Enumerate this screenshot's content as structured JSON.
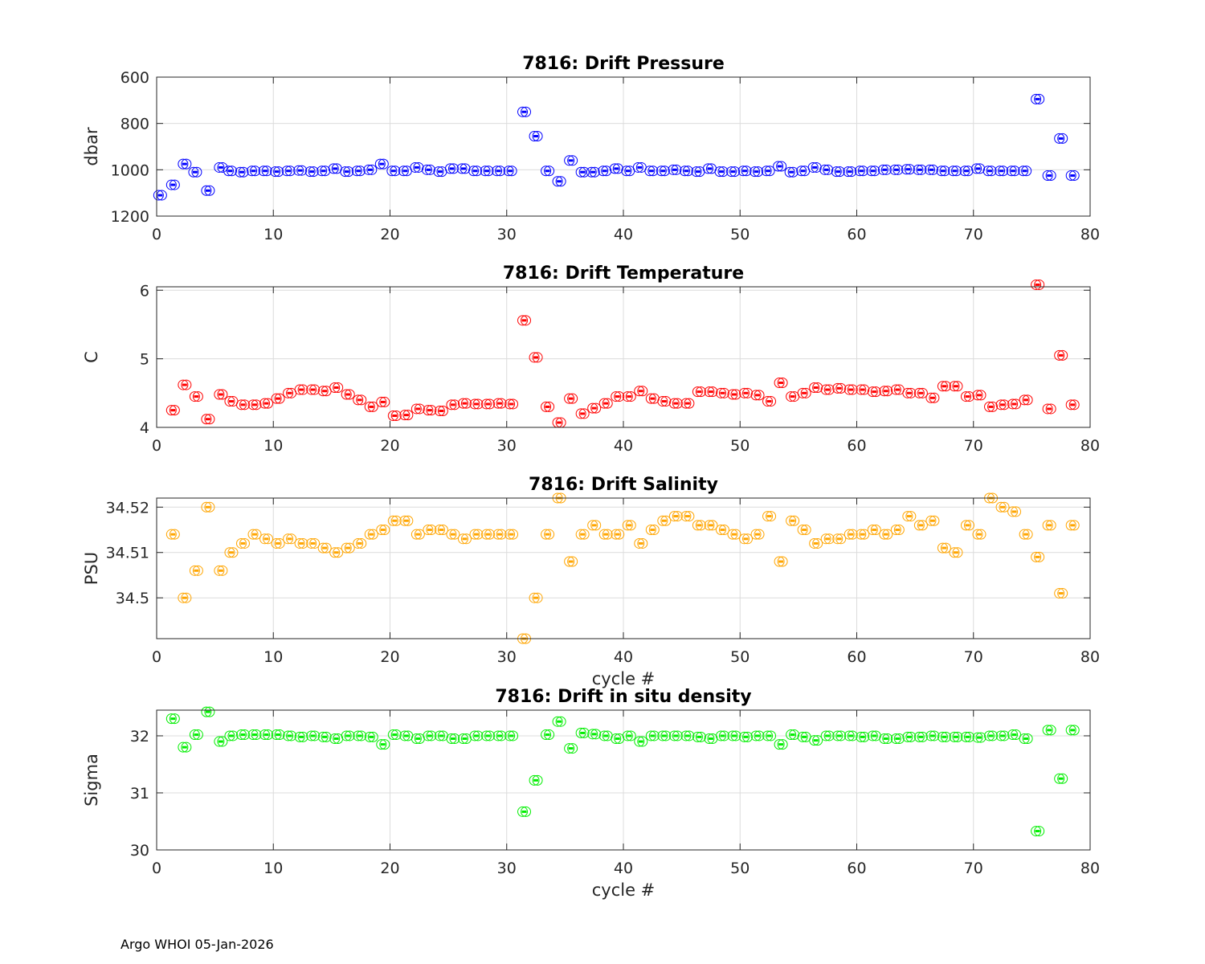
{
  "chart_data": [
    {
      "type": "scatter",
      "title": "7816: Drift Pressure",
      "xlabel": "",
      "ylabel": "dbar",
      "xlim": [
        0,
        80
      ],
      "ylim": [
        600,
        1200
      ],
      "y_reversed": true,
      "xticks": [
        0,
        10,
        20,
        30,
        40,
        50,
        60,
        70,
        80
      ],
      "xtick_labels": [
        "0",
        "10",
        "20",
        "30",
        "40",
        "50",
        "60",
        "70",
        "80"
      ],
      "yticks": [
        600,
        800,
        1000,
        1200
      ],
      "ytick_labels": [
        "600",
        "800",
        "1000",
        "1200"
      ],
      "color": "#0000ff",
      "series": [
        {
          "name": "drift pressure",
          "x": [
            0.3,
            1.4,
            2.4,
            3.3,
            4.4,
            5.5,
            6.3,
            7.3,
            8.3,
            9.3,
            10.3,
            11.3,
            12.3,
            13.3,
            14.3,
            15.3,
            16.3,
            17.3,
            18.3,
            19.3,
            20.3,
            21.3,
            22.3,
            23.3,
            24.3,
            25.3,
            26.3,
            27.3,
            28.3,
            29.3,
            30.3,
            31.5,
            32.5,
            33.5,
            34.5,
            35.5,
            36.5,
            37.4,
            38.4,
            39.4,
            40.4,
            41.4,
            42.4,
            43.4,
            44.4,
            45.4,
            46.4,
            47.4,
            48.4,
            49.4,
            50.4,
            51.4,
            52.4,
            53.4,
            54.4,
            55.4,
            56.4,
            57.4,
            58.4,
            59.4,
            60.4,
            61.4,
            62.4,
            63.4,
            64.4,
            65.4,
            66.4,
            67.4,
            68.4,
            69.4,
            70.4,
            71.4,
            72.4,
            73.4,
            74.4,
            75.5,
            76.5,
            77.5,
            78.5
          ],
          "y": [
            1110,
            1065,
            975,
            1010,
            1090,
            990,
            1005,
            1010,
            1005,
            1005,
            1008,
            1005,
            1003,
            1008,
            1005,
            995,
            1008,
            1005,
            1000,
            975,
            1005,
            1005,
            990,
            1000,
            1008,
            995,
            995,
            1005,
            1005,
            1005,
            1005,
            750,
            855,
            1005,
            1050,
            960,
            1010,
            1010,
            1005,
            995,
            1005,
            990,
            1005,
            1005,
            1000,
            1005,
            1008,
            995,
            1008,
            1008,
            1005,
            1008,
            1005,
            985,
            1010,
            1005,
            990,
            1000,
            1008,
            1008,
            1005,
            1005,
            1000,
            1000,
            998,
            1000,
            1000,
            1005,
            1005,
            1005,
            995,
            1005,
            1005,
            1005,
            1005,
            695,
            1025,
            865,
            1025
          ]
        }
      ]
    },
    {
      "type": "scatter",
      "title": "7816: Drift Temperature",
      "xlabel": "",
      "ylabel": "C",
      "xlim": [
        0,
        80
      ],
      "ylim": [
        4,
        6.05
      ],
      "xticks": [
        0,
        10,
        20,
        30,
        40,
        50,
        60,
        70,
        80
      ],
      "xtick_labels": [
        "0",
        "10",
        "20",
        "30",
        "40",
        "50",
        "60",
        "70",
        "80"
      ],
      "yticks": [
        4,
        5,
        6
      ],
      "ytick_labels": [
        "4",
        "5",
        "6"
      ],
      "color": "#ff0000",
      "series": [
        {
          "name": "drift temperature",
          "x": [
            1.4,
            2.4,
            3.4,
            4.4,
            5.5,
            6.4,
            7.4,
            8.4,
            9.4,
            10.4,
            11.4,
            12.4,
            13.4,
            14.4,
            15.4,
            16.4,
            17.4,
            18.4,
            19.4,
            20.4,
            21.4,
            22.4,
            23.4,
            24.4,
            25.4,
            26.4,
            27.4,
            28.4,
            29.4,
            30.4,
            31.5,
            32.5,
            33.5,
            34.5,
            35.5,
            36.5,
            37.5,
            38.5,
            39.5,
            40.5,
            41.5,
            42.5,
            43.5,
            44.5,
            45.5,
            46.5,
            47.5,
            48.5,
            49.5,
            50.5,
            51.5,
            52.5,
            53.5,
            54.5,
            55.5,
            56.5,
            57.5,
            58.5,
            59.5,
            60.5,
            61.5,
            62.5,
            63.5,
            64.5,
            65.5,
            66.5,
            67.5,
            68.5,
            69.5,
            70.5,
            71.5,
            72.5,
            73.5,
            74.5,
            75.5,
            76.5,
            77.5,
            78.5
          ],
          "y": [
            4.25,
            4.62,
            4.45,
            4.12,
            4.48,
            4.38,
            4.33,
            4.33,
            4.35,
            4.42,
            4.5,
            4.55,
            4.55,
            4.53,
            4.58,
            4.48,
            4.4,
            4.3,
            4.37,
            4.17,
            4.18,
            4.27,
            4.25,
            4.24,
            4.33,
            4.35,
            4.34,
            4.34,
            4.35,
            4.34,
            5.56,
            5.02,
            4.3,
            4.07,
            4.42,
            4.2,
            4.28,
            4.35,
            4.45,
            4.45,
            4.53,
            4.42,
            4.38,
            4.35,
            4.35,
            4.52,
            4.52,
            4.5,
            4.48,
            4.5,
            4.47,
            4.38,
            4.65,
            4.45,
            4.5,
            4.58,
            4.55,
            4.57,
            4.55,
            4.55,
            4.52,
            4.53,
            4.55,
            4.5,
            4.5,
            4.43,
            4.6,
            4.6,
            4.45,
            4.47,
            4.3,
            4.33,
            4.34,
            4.4,
            6.08,
            4.27,
            5.05,
            4.33
          ]
        }
      ]
    },
    {
      "type": "scatter",
      "title": "7816: Drift Salinity",
      "xlabel": "cycle #",
      "ylabel": "PSU",
      "xlim": [
        0,
        80
      ],
      "ylim": [
        34.491,
        34.522
      ],
      "xticks": [
        0,
        10,
        20,
        30,
        40,
        50,
        60,
        70,
        80
      ],
      "xtick_labels": [
        "0",
        "10",
        "20",
        "30",
        "40",
        "50",
        "60",
        "70",
        "80"
      ],
      "yticks": [
        34.5,
        34.51,
        34.52
      ],
      "ytick_labels": [
        "34.5",
        "34.51",
        "34.52"
      ],
      "color": "#ffa500",
      "series": [
        {
          "name": "drift salinity",
          "x": [
            1.4,
            2.4,
            3.4,
            4.4,
            5.5,
            6.4,
            7.4,
            8.4,
            9.4,
            10.4,
            11.4,
            12.4,
            13.4,
            14.4,
            15.4,
            16.4,
            17.4,
            18.4,
            19.4,
            20.4,
            21.4,
            22.4,
            23.4,
            24.4,
            25.4,
            26.4,
            27.4,
            28.4,
            29.4,
            30.4,
            31.5,
            32.5,
            33.5,
            34.5,
            35.5,
            36.5,
            37.5,
            38.5,
            39.5,
            40.5,
            41.5,
            42.5,
            43.5,
            44.5,
            45.5,
            46.5,
            47.5,
            48.5,
            49.5,
            50.5,
            51.5,
            52.5,
            53.5,
            54.5,
            55.5,
            56.5,
            57.5,
            58.5,
            59.5,
            60.5,
            61.5,
            62.5,
            63.5,
            64.5,
            65.5,
            66.5,
            67.5,
            68.5,
            69.5,
            70.5,
            71.5,
            72.5,
            73.5,
            74.5,
            75.5,
            76.5,
            77.5,
            78.5
          ],
          "y": [
            34.514,
            34.5,
            34.506,
            34.52,
            34.506,
            34.51,
            34.512,
            34.514,
            34.513,
            34.512,
            34.513,
            34.512,
            34.512,
            34.511,
            34.51,
            34.511,
            34.512,
            34.514,
            34.515,
            34.517,
            34.517,
            34.514,
            34.515,
            34.515,
            34.514,
            34.513,
            34.514,
            34.514,
            34.514,
            34.514,
            34.491,
            34.5,
            34.514,
            34.522,
            34.508,
            34.514,
            34.516,
            34.514,
            34.514,
            34.516,
            34.512,
            34.515,
            34.517,
            34.518,
            34.518,
            34.516,
            34.516,
            34.515,
            34.514,
            34.513,
            34.514,
            34.518,
            34.508,
            34.517,
            34.515,
            34.512,
            34.513,
            34.513,
            34.514,
            34.514,
            34.515,
            34.514,
            34.515,
            34.518,
            34.516,
            34.517,
            34.511,
            34.51,
            34.516,
            34.514,
            34.522,
            34.52,
            34.519,
            34.514,
            34.509,
            34.516,
            34.501,
            34.516
          ]
        }
      ]
    },
    {
      "type": "scatter",
      "title": "7816: Drift in situ density",
      "xlabel": "cycle #",
      "ylabel": "Sigma",
      "xlim": [
        0,
        80
      ],
      "ylim": [
        30,
        32.45
      ],
      "xticks": [
        0,
        10,
        20,
        30,
        40,
        50,
        60,
        70,
        80
      ],
      "xtick_labels": [
        "0",
        "10",
        "20",
        "30",
        "40",
        "50",
        "60",
        "70",
        "80"
      ],
      "yticks": [
        30,
        31,
        32
      ],
      "ytick_labels": [
        "30",
        "31",
        "32"
      ],
      "color": "#00ee00",
      "series": [
        {
          "name": "drift density",
          "x": [
            1.4,
            2.4,
            3.4,
            4.4,
            5.5,
            6.4,
            7.4,
            8.4,
            9.4,
            10.4,
            11.4,
            12.4,
            13.4,
            14.4,
            15.4,
            16.4,
            17.4,
            18.4,
            19.4,
            20.4,
            21.4,
            22.4,
            23.4,
            24.4,
            25.4,
            26.4,
            27.4,
            28.4,
            29.4,
            30.4,
            31.5,
            32.5,
            33.5,
            34.5,
            35.5,
            36.5,
            37.5,
            38.5,
            39.5,
            40.5,
            41.5,
            42.5,
            43.5,
            44.5,
            45.5,
            46.5,
            47.5,
            48.5,
            49.5,
            50.5,
            51.5,
            52.5,
            53.5,
            54.5,
            55.5,
            56.5,
            57.5,
            58.5,
            59.5,
            60.5,
            61.5,
            62.5,
            63.5,
            64.5,
            65.5,
            66.5,
            67.5,
            68.5,
            69.5,
            70.5,
            71.5,
            72.5,
            73.5,
            74.5,
            75.5,
            76.5,
            77.5,
            78.5
          ],
          "y": [
            32.3,
            31.8,
            32.02,
            32.42,
            31.9,
            32.0,
            32.02,
            32.02,
            32.02,
            32.02,
            32.0,
            31.98,
            32.0,
            31.98,
            31.95,
            32.0,
            32.0,
            31.98,
            31.85,
            32.02,
            32.0,
            31.95,
            32.0,
            32.0,
            31.95,
            31.95,
            32.0,
            32.0,
            32.0,
            32.0,
            30.67,
            31.22,
            32.02,
            32.25,
            31.78,
            32.05,
            32.03,
            32.0,
            31.95,
            32.0,
            31.9,
            32.0,
            32.0,
            32.0,
            32.0,
            31.98,
            31.95,
            32.0,
            32.0,
            31.98,
            32.0,
            32.0,
            31.85,
            32.02,
            31.98,
            31.92,
            32.0,
            32.0,
            32.0,
            31.98,
            32.0,
            31.95,
            31.95,
            31.98,
            31.98,
            32.0,
            31.98,
            31.98,
            31.98,
            31.97,
            32.0,
            32.0,
            32.02,
            31.95,
            30.33,
            32.1,
            31.25,
            32.1
          ]
        }
      ]
    }
  ],
  "footer": "Argo WHOI 05-Jan-2026"
}
